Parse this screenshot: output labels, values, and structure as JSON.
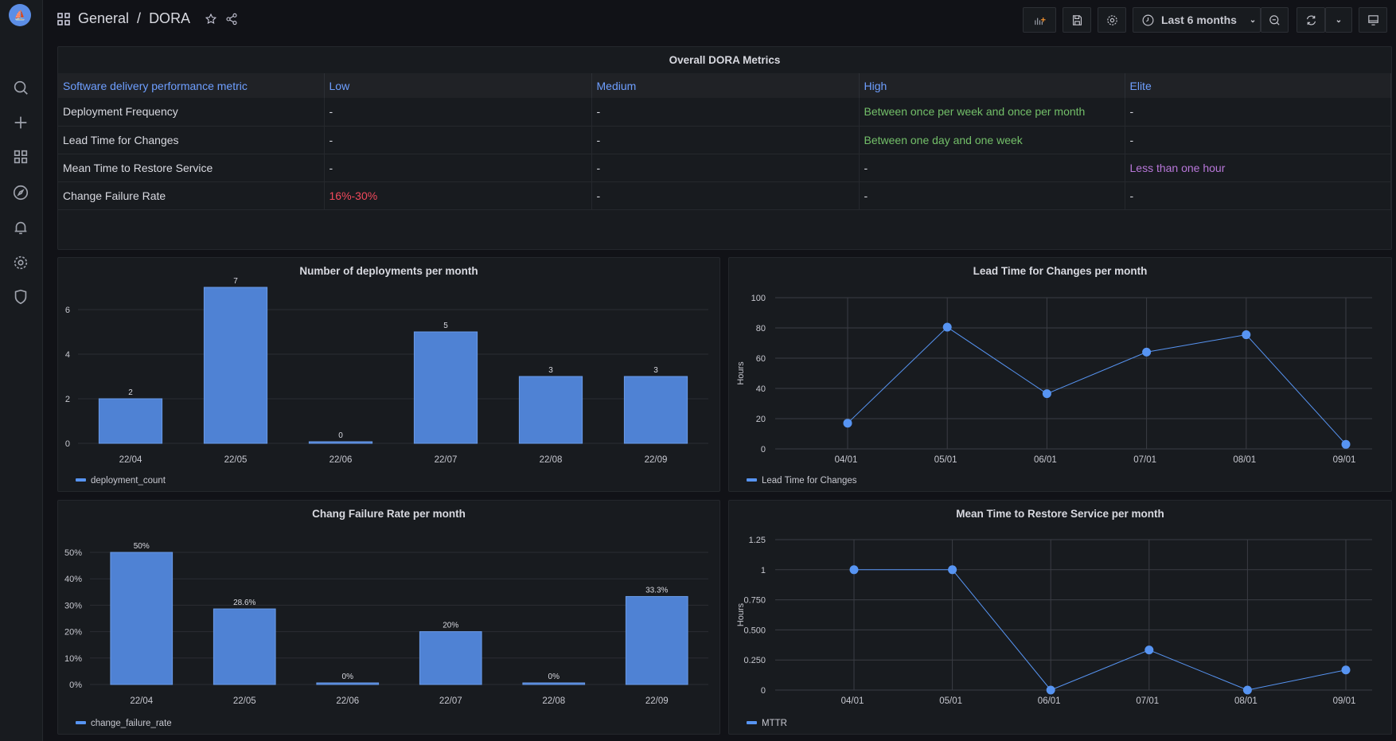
{
  "header": {
    "breadcrumb_folder": "General",
    "breadcrumb_sep": "/",
    "breadcrumb_dashboard": "DORA",
    "time_range": "Last 6 months"
  },
  "sidebar": {
    "items": [
      "search",
      "create",
      "dashboards",
      "explore",
      "alerting",
      "configuration",
      "server-admin"
    ]
  },
  "table": {
    "title": "Overall DORA Metrics",
    "columns": [
      "Software delivery performance metric",
      "Low",
      "Medium",
      "High",
      "Elite"
    ],
    "rows": [
      [
        "Deployment Frequency",
        "-",
        "-",
        "Between once per week and once per month",
        "-"
      ],
      [
        "Lead Time for Changes",
        "-",
        "-",
        "Between one day and one week",
        "-"
      ],
      [
        "Mean Time to Restore Service",
        "-",
        "-",
        "-",
        "Less than one hour"
      ],
      [
        "Change Failure Rate",
        "16%-30%",
        "-",
        "-",
        "-"
      ]
    ],
    "colors": {
      "low": "#f2495c",
      "high": "#73bf69",
      "elite": "#b877d9",
      "header": "#6e9fff"
    }
  },
  "chart_data": [
    {
      "type": "bar",
      "title": "Number of deployments per month",
      "categories": [
        "22/04",
        "22/05",
        "22/06",
        "22/07",
        "22/08",
        "22/09"
      ],
      "series": [
        {
          "name": "deployment_count",
          "values": [
            2,
            7,
            0,
            5,
            3,
            3
          ]
        }
      ],
      "value_labels": [
        "2",
        "7",
        "0",
        "5",
        "3",
        "3"
      ],
      "yticks": [
        "0",
        "2",
        "4",
        "6"
      ],
      "ylim": [
        0,
        7
      ],
      "color": "#4f82d4",
      "grid": true,
      "legend": "bottom-left"
    },
    {
      "type": "line",
      "title": "Lead Time for Changes per month",
      "ylabel": "Hours",
      "x": [
        "04/01",
        "05/01",
        "06/01",
        "07/01",
        "08/01",
        "09/01"
      ],
      "series": [
        {
          "name": "Lead Time for Changes",
          "values": [
            17,
            80.5,
            36.5,
            64,
            75.5,
            3
          ]
        }
      ],
      "yticks": [
        "0",
        "20",
        "40",
        "60",
        "80",
        "100"
      ],
      "ylim": [
        0,
        100
      ],
      "color": "#5794f2",
      "grid": true,
      "legend": "bottom-left"
    },
    {
      "type": "bar",
      "title": "Chang Failure Rate per month",
      "categories": [
        "22/04",
        "22/05",
        "22/06",
        "22/07",
        "22/08",
        "22/09"
      ],
      "series": [
        {
          "name": "change_failure_rate",
          "values": [
            50,
            28.6,
            0,
            20,
            0,
            33.3
          ]
        }
      ],
      "value_labels": [
        "50%",
        "28.6%",
        "0%",
        "20%",
        "0%",
        "33.3%"
      ],
      "yticks": [
        "0%",
        "10%",
        "20%",
        "30%",
        "40%",
        "50%"
      ],
      "ylim": [
        0,
        50
      ],
      "color": "#4f82d4",
      "grid": true,
      "legend": "bottom-left"
    },
    {
      "type": "line",
      "title": "Mean Time to Restore Service per month",
      "ylabel": "Hours",
      "x": [
        "04/01",
        "05/01",
        "06/01",
        "07/01",
        "08/01",
        "09/01"
      ],
      "series": [
        {
          "name": "MTTR",
          "values": [
            1,
            1,
            0,
            0.333,
            0,
            0.167
          ]
        }
      ],
      "yticks": [
        "0",
        "0.250",
        "0.500",
        "0.750",
        "1",
        "1.25"
      ],
      "ylim": [
        0,
        1.25
      ],
      "color": "#5794f2",
      "grid": true,
      "legend": "bottom-left"
    }
  ]
}
